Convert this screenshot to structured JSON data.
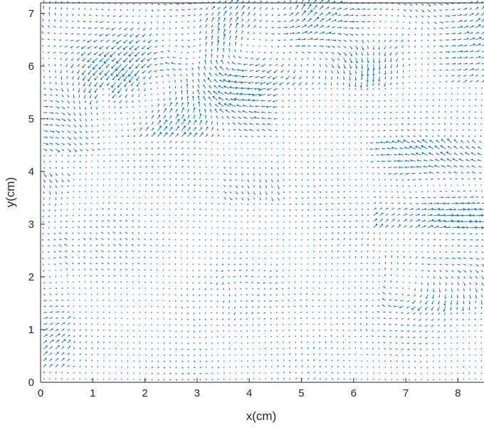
{
  "chart_data": {
    "type": "quiver",
    "xlabel": "x(cm)",
    "ylabel": "y(cm)",
    "xlim": [
      0,
      8.5
    ],
    "ylim": [
      0,
      7.2
    ],
    "xticks": [
      "0",
      "1",
      "2",
      "3",
      "4",
      "5",
      "6",
      "7",
      "8"
    ],
    "yticks": [
      "0",
      "1",
      "2",
      "3",
      "4",
      "5",
      "6",
      "7"
    ],
    "grid": false,
    "legend": "none",
    "grid_spacing_cm": 0.115,
    "arrow_color": "#0072BD",
    "axis_color": "#262626",
    "dense_regions": [
      {
        "x": [
          0.0,
          8.5
        ],
        "y": [
          5.6,
          7.2
        ],
        "magnitude": "high"
      },
      {
        "x": [
          0.0,
          1.2
        ],
        "y": [
          4.4,
          6.0
        ],
        "magnitude": "high"
      },
      {
        "x": [
          1.4,
          4.6
        ],
        "y": [
          4.6,
          6.0
        ],
        "magnitude": "high"
      },
      {
        "x": [
          6.3,
          8.5
        ],
        "y": [
          2.9,
          4.6
        ],
        "magnitude": "high"
      },
      {
        "x": [
          6.5,
          8.5
        ],
        "y": [
          1.4,
          2.4
        ],
        "magnitude": "medium"
      },
      {
        "x": [
          3.5,
          4.6
        ],
        "y": [
          3.5,
          4.4
        ],
        "magnitude": "medium"
      },
      {
        "x": [
          0.0,
          0.6
        ],
        "y": [
          0.2,
          4.0
        ],
        "magnitude": "medium"
      }
    ]
  }
}
